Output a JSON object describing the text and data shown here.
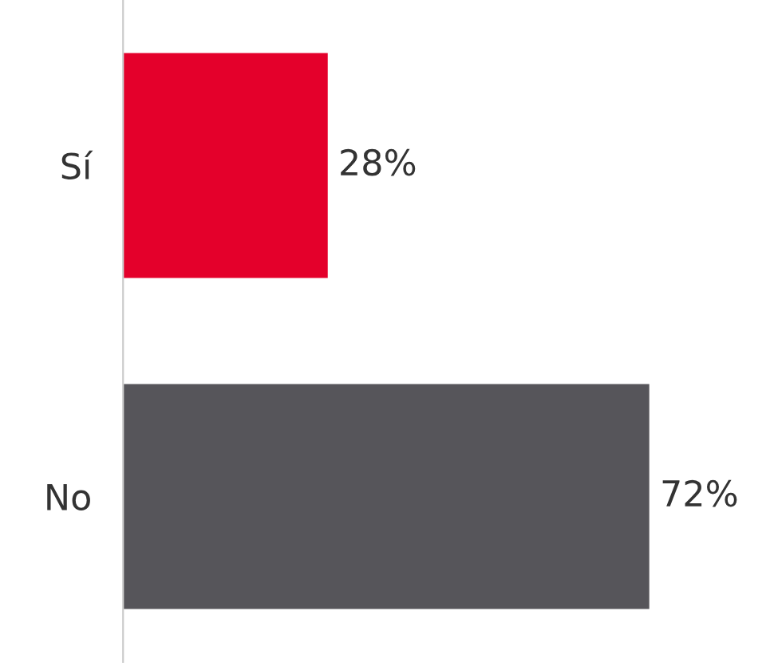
{
  "chart_data": {
    "type": "bar",
    "orientation": "horizontal",
    "categories": [
      "Sí",
      "No"
    ],
    "values": [
      28,
      72
    ],
    "colors": [
      "#e4002b",
      "#56555a"
    ],
    "value_labels": [
      "28%",
      "72%"
    ],
    "grid": false,
    "legend": false
  }
}
